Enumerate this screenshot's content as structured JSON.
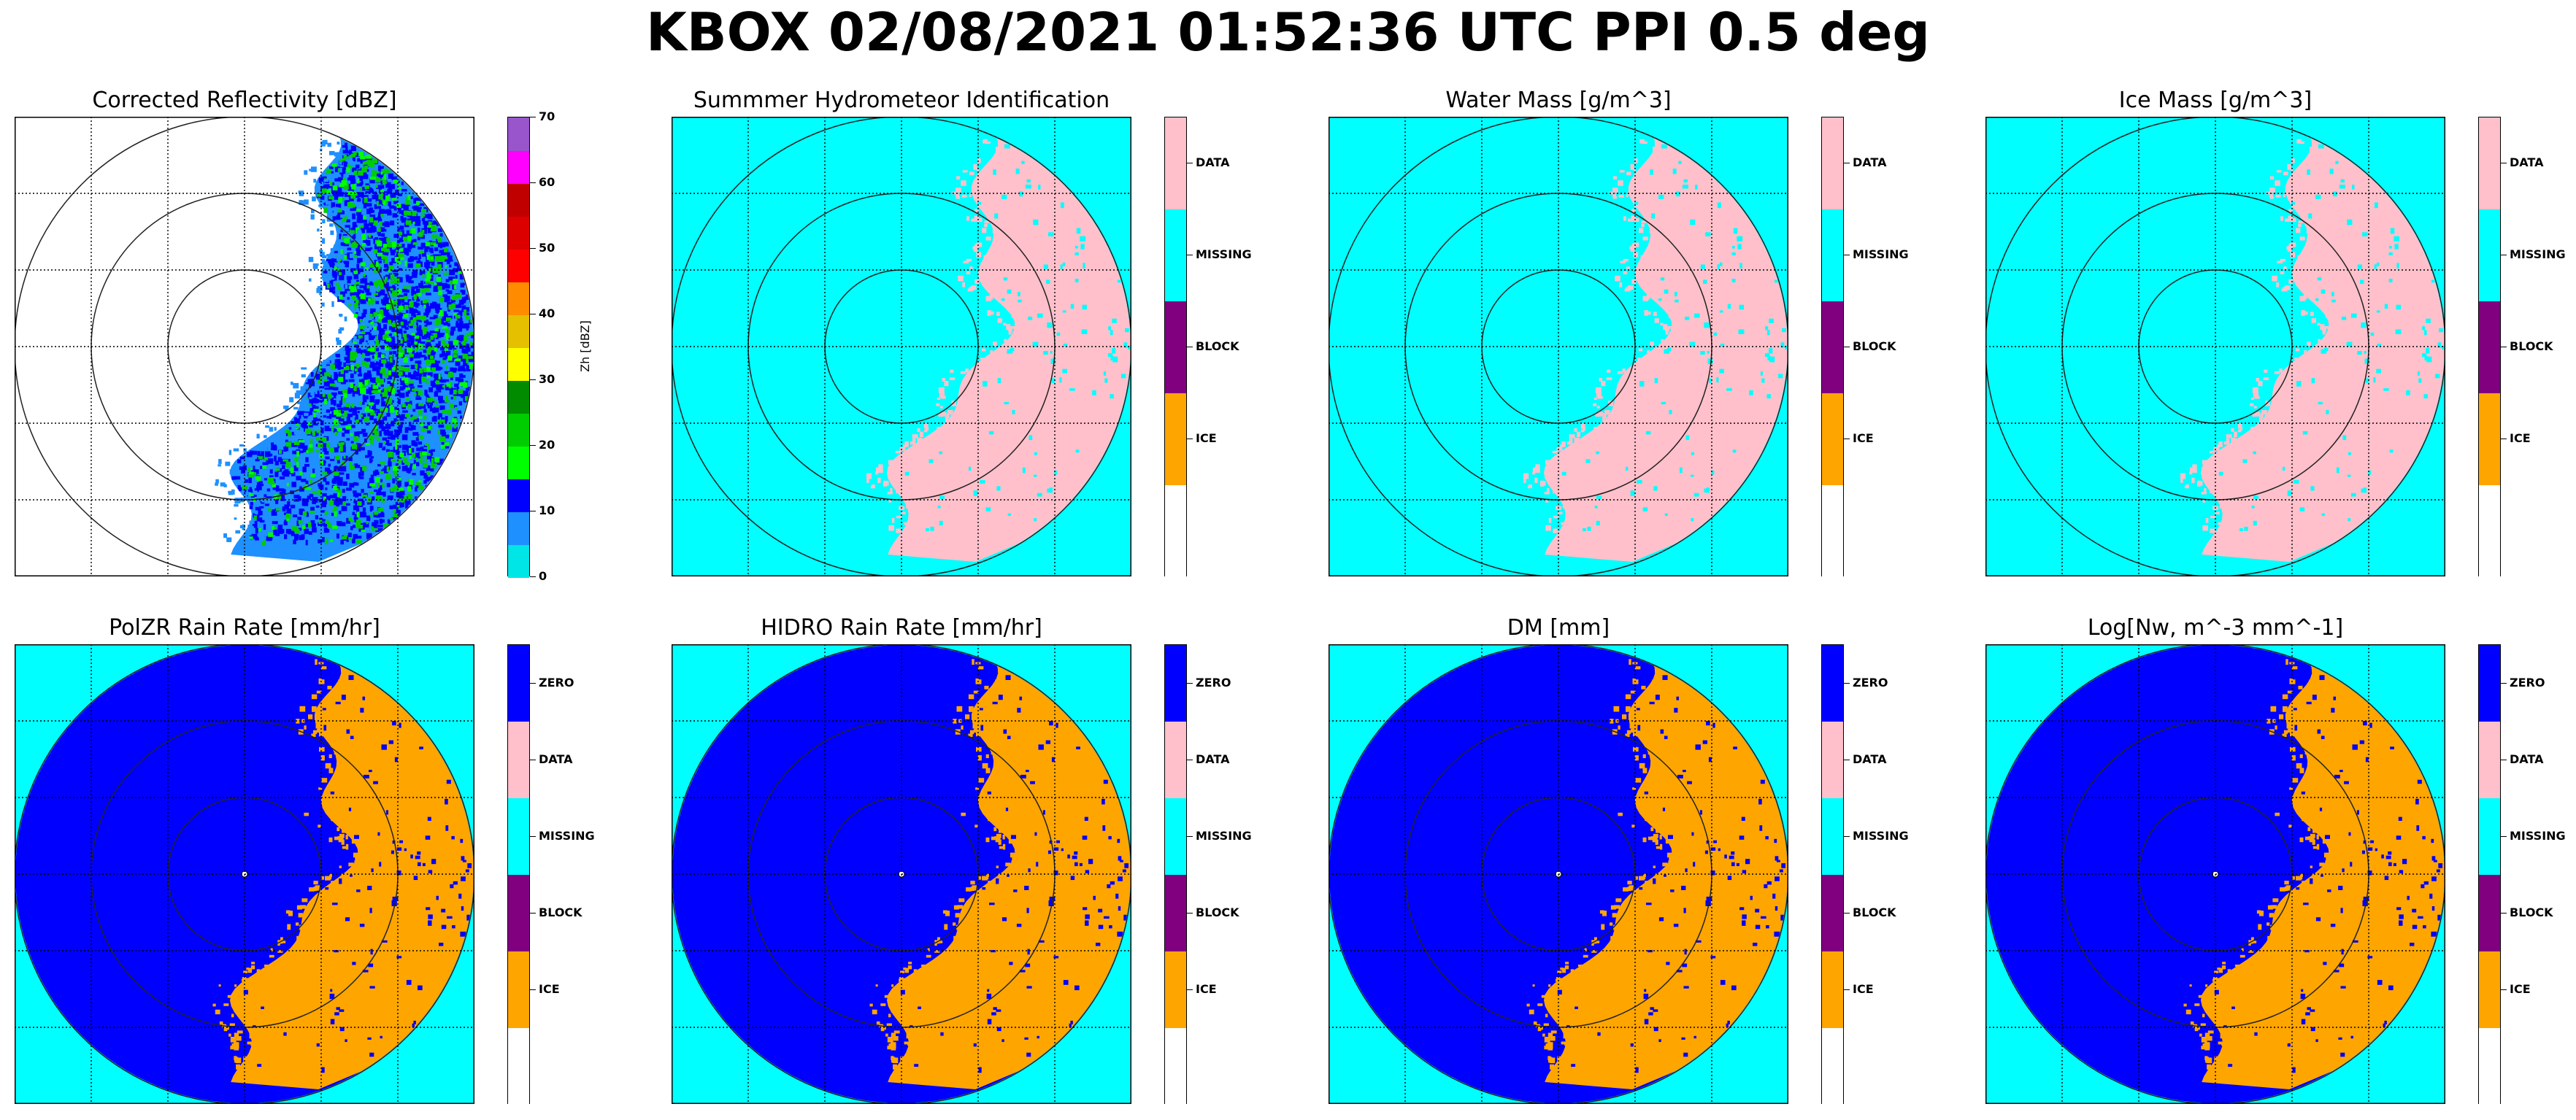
{
  "figure": {
    "title": "KBOX 02/08/2021 01:52:36 UTC PPI 0.5 deg"
  },
  "colors": {
    "cyan": "#00ffff",
    "blue": "#0000ff",
    "pink": "#ffc0cb",
    "orange": "#ffa500",
    "purple": "#800080",
    "white": "#ffffff"
  },
  "panels": [
    {
      "title": "Corrected Reflectivity [dBZ]",
      "kind": "reflectivity",
      "colorbar": {
        "type": "continuous",
        "label": "Zh [dBZ]",
        "range": [
          0,
          70
        ],
        "ticks": [
          "0",
          "10",
          "20",
          "30",
          "40",
          "50",
          "60",
          "70"
        ],
        "colors": [
          "#00e5e5",
          "#1e90ff",
          "#0000ff",
          "#00ff00",
          "#00cd00",
          "#008b00",
          "#ffff00",
          "#e5c000",
          "#ff8c00",
          "#ff0000",
          "#dd0000",
          "#c00000",
          "#ff00ff",
          "#9955cc"
        ]
      }
    },
    {
      "title": "Summmer Hydrometeor Identification",
      "kind": "category-a",
      "colorbar": {
        "type": "categorical",
        "labels": [
          "DATA",
          "MISSING",
          "BLOCK",
          "ICE"
        ],
        "colors": [
          "#ffc0cb",
          "#00ffff",
          "#800080",
          "#ffa500",
          "#ffffff"
        ]
      }
    },
    {
      "title": "Water Mass [g/m^3]",
      "kind": "category-a",
      "colorbar": {
        "type": "categorical",
        "labels": [
          "DATA",
          "MISSING",
          "BLOCK",
          "ICE"
        ],
        "colors": [
          "#ffc0cb",
          "#00ffff",
          "#800080",
          "#ffa500",
          "#ffffff"
        ]
      }
    },
    {
      "title": "Ice Mass [g/m^3]",
      "kind": "category-a",
      "colorbar": {
        "type": "categorical",
        "labels": [
          "DATA",
          "MISSING",
          "BLOCK",
          "ICE"
        ],
        "colors": [
          "#ffc0cb",
          "#00ffff",
          "#800080",
          "#ffa500",
          "#ffffff"
        ]
      }
    },
    {
      "title": "PolZR Rain Rate [mm/hr]",
      "kind": "category-b",
      "colorbar": {
        "type": "categorical",
        "labels": [
          "ZERO",
          "DATA",
          "MISSING",
          "BLOCK",
          "ICE"
        ],
        "colors": [
          "#0000ff",
          "#ffc0cb",
          "#00ffff",
          "#800080",
          "#ffa500",
          "#ffffff"
        ]
      }
    },
    {
      "title": "HIDRO Rain Rate [mm/hr]",
      "kind": "category-b",
      "colorbar": {
        "type": "categorical",
        "labels": [
          "ZERO",
          "DATA",
          "MISSING",
          "BLOCK",
          "ICE"
        ],
        "colors": [
          "#0000ff",
          "#ffc0cb",
          "#00ffff",
          "#800080",
          "#ffa500",
          "#ffffff"
        ]
      }
    },
    {
      "title": "DM [mm]",
      "kind": "category-b",
      "colorbar": {
        "type": "categorical",
        "labels": [
          "ZERO",
          "DATA",
          "MISSING",
          "BLOCK",
          "ICE"
        ],
        "colors": [
          "#0000ff",
          "#ffc0cb",
          "#00ffff",
          "#800080",
          "#ffa500",
          "#ffffff"
        ]
      }
    },
    {
      "title": "Log[Nw, m^-3 mm^-1]",
      "kind": "category-b",
      "colorbar": {
        "type": "categorical",
        "labels": [
          "ZERO",
          "DATA",
          "MISSING",
          "BLOCK",
          "ICE"
        ],
        "colors": [
          "#0000ff",
          "#ffc0cb",
          "#00ffff",
          "#800080",
          "#ffa500",
          "#ffffff"
        ]
      }
    }
  ],
  "chart_data": [
    {
      "type": "heatmap",
      "title": "Corrected Reflectivity [dBZ]",
      "zlabel": "Zh [dBZ]",
      "zlim": [
        0,
        70
      ],
      "range_rings": 3,
      "grid": true,
      "echo_region": "eastern half of the scan",
      "dominant_values_dBZ": [
        10,
        25
      ]
    },
    {
      "type": "heatmap",
      "title": "Summmer Hydrometeor Identification",
      "categories": [
        "DATA",
        "MISSING",
        "BLOCK",
        "ICE"
      ],
      "range_rings": 3,
      "grid": true
    },
    {
      "type": "heatmap",
      "title": "Water Mass [g/m^3]",
      "categories": [
        "DATA",
        "MISSING",
        "BLOCK",
        "ICE"
      ],
      "range_rings": 3,
      "grid": true
    },
    {
      "type": "heatmap",
      "title": "Ice Mass [g/m^3]",
      "categories": [
        "DATA",
        "MISSING",
        "BLOCK",
        "ICE"
      ],
      "range_rings": 3,
      "grid": true
    },
    {
      "type": "heatmap",
      "title": "PolZR Rain Rate [mm/hr]",
      "categories": [
        "ZERO",
        "DATA",
        "MISSING",
        "BLOCK",
        "ICE"
      ],
      "range_rings": 3,
      "grid": true
    },
    {
      "type": "heatmap",
      "title": "HIDRO Rain Rate [mm/hr]",
      "categories": [
        "ZERO",
        "DATA",
        "MISSING",
        "BLOCK",
        "ICE"
      ],
      "range_rings": 3,
      "grid": true
    },
    {
      "type": "heatmap",
      "title": "DM [mm]",
      "categories": [
        "ZERO",
        "DATA",
        "MISSING",
        "BLOCK",
        "ICE"
      ],
      "range_rings": 3,
      "grid": true
    },
    {
      "type": "heatmap",
      "title": "Log[Nw, m^-3 mm^-1]",
      "categories": [
        "ZERO",
        "DATA",
        "MISSING",
        "BLOCK",
        "ICE"
      ],
      "range_rings": 3,
      "grid": true
    }
  ]
}
